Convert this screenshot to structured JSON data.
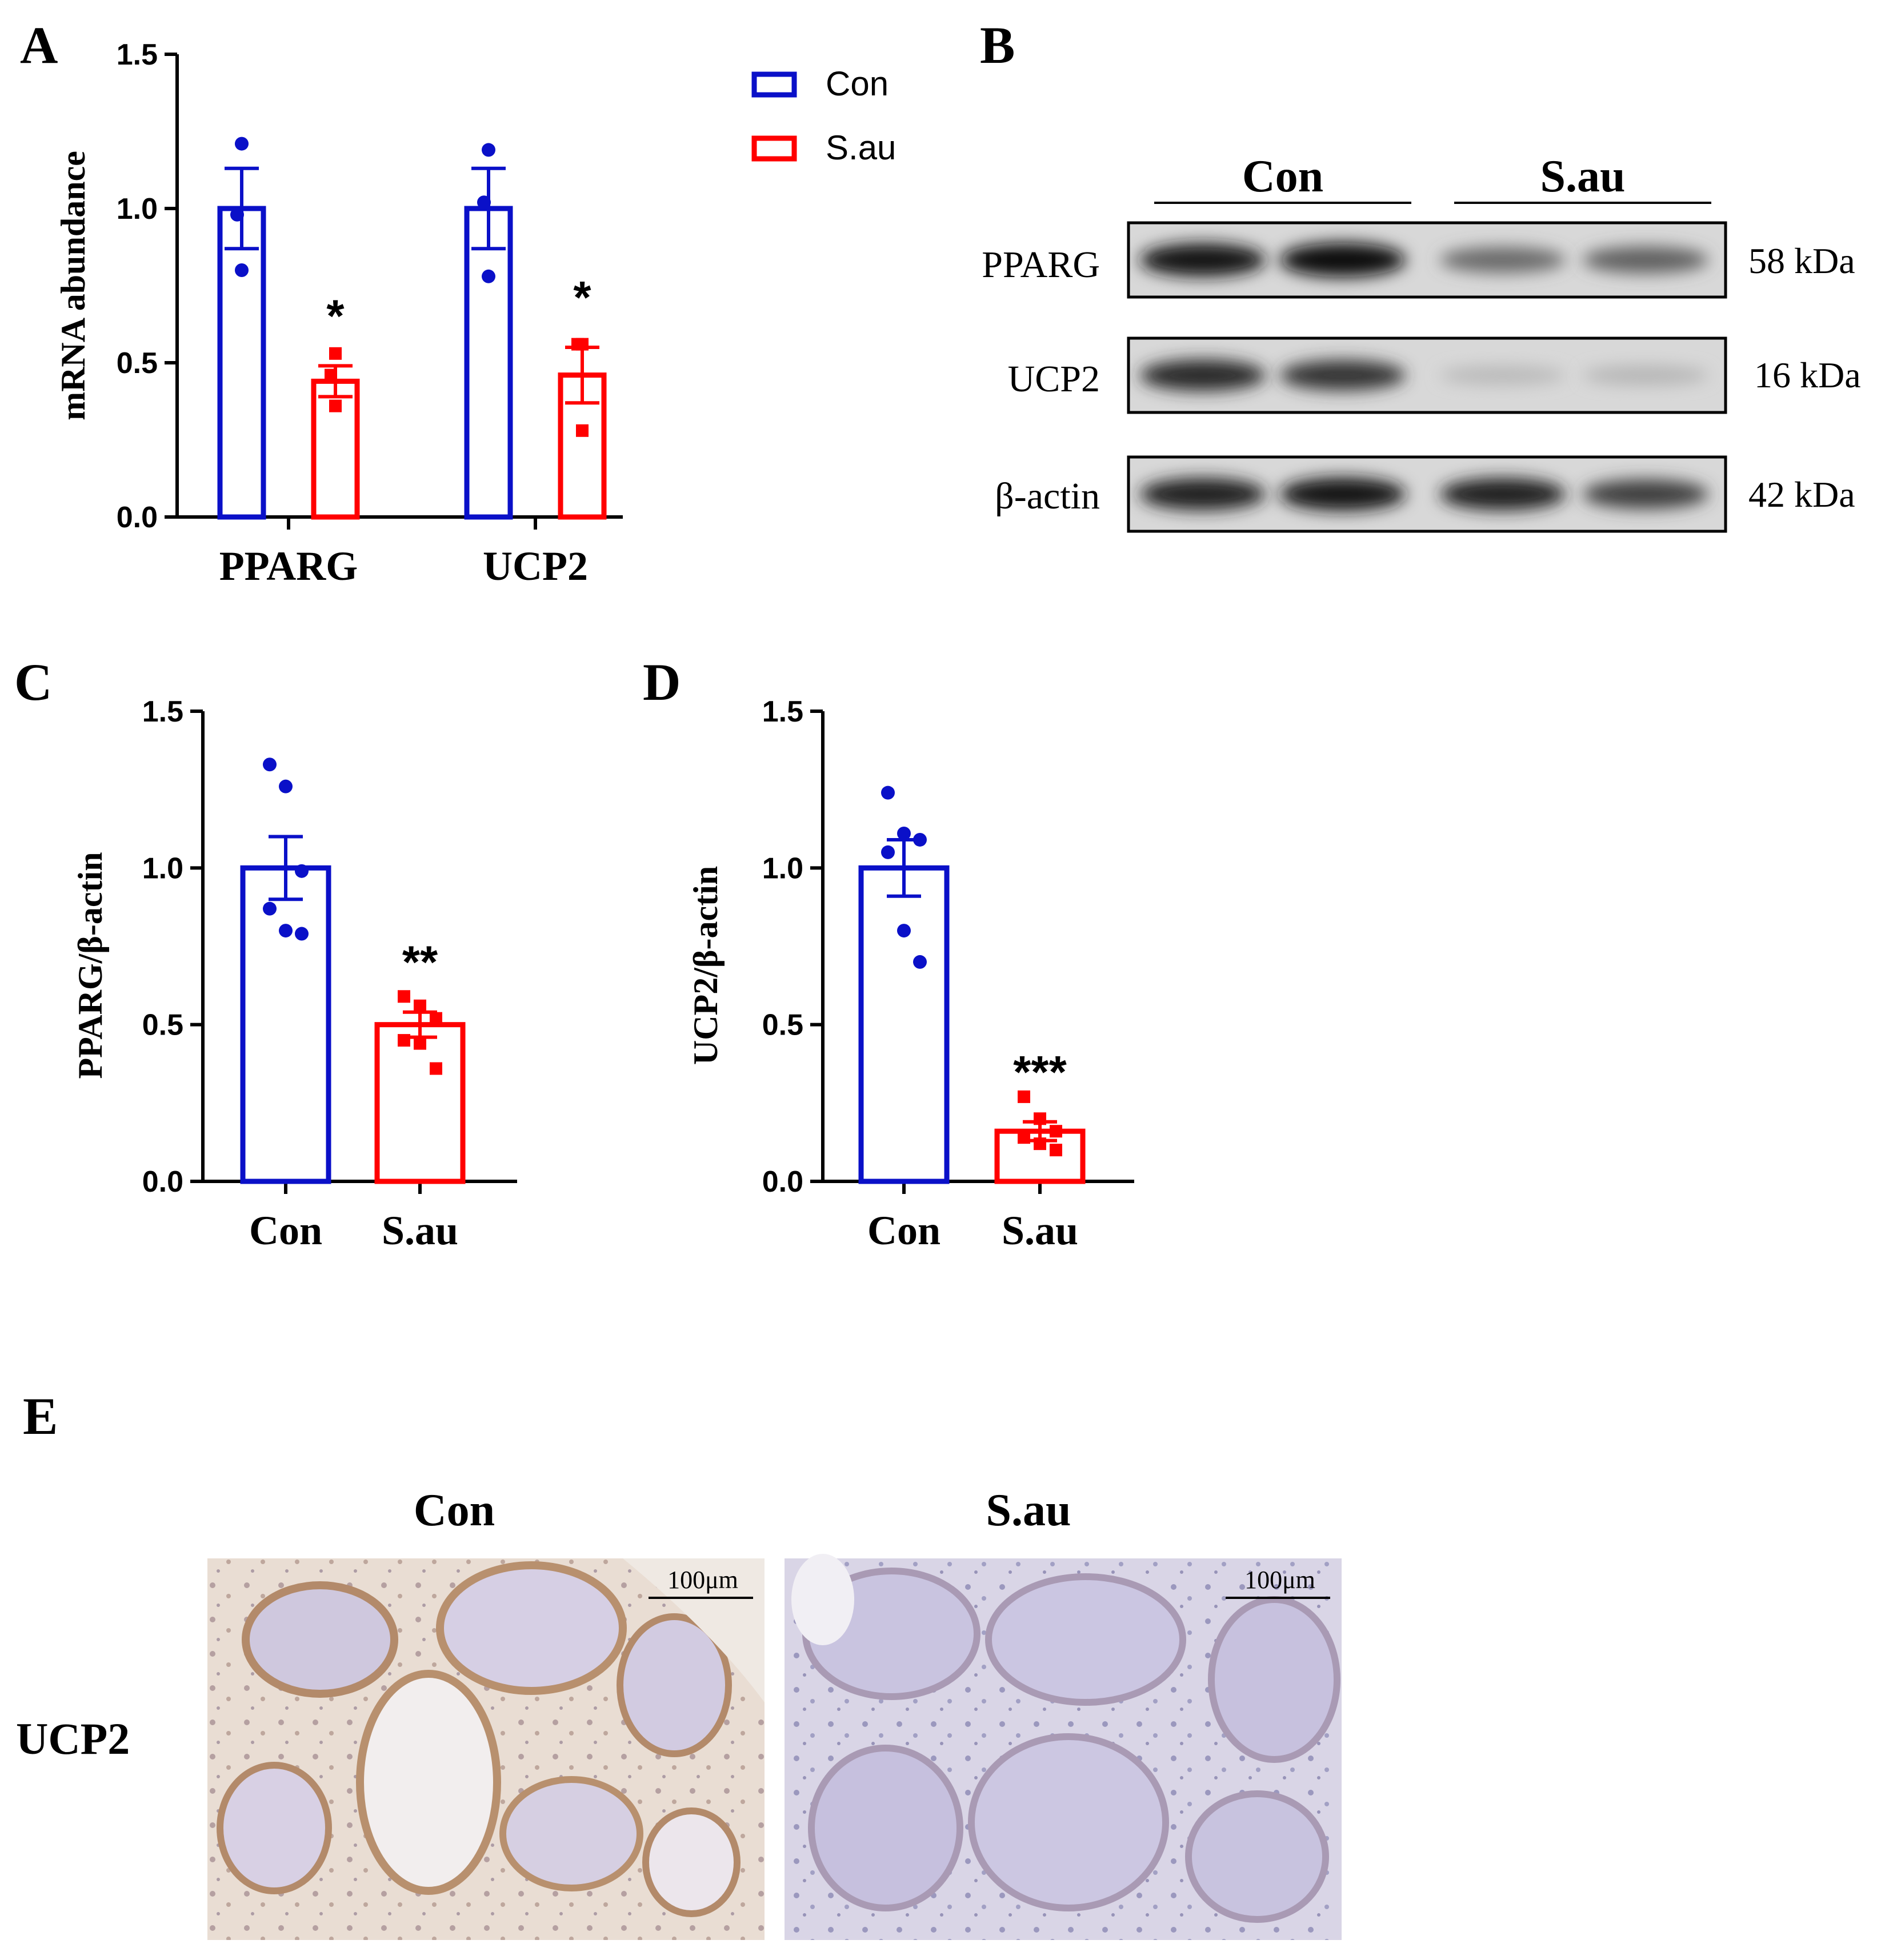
{
  "colors": {
    "con": "#0a10c8",
    "sau": "#ff0000",
    "axis": "#000000"
  },
  "legend": {
    "con": "Con",
    "sau": "S.au"
  },
  "panels": {
    "A": "A",
    "B": "B",
    "C": "C",
    "D": "D",
    "E": "E"
  },
  "chart_data": [
    {
      "panel": "A",
      "type": "bar",
      "ylabel": "mRNA abundance",
      "ylim": [
        0,
        1.5
      ],
      "yticks": [
        "0.0",
        "0.5",
        "1.0",
        "1.5"
      ],
      "categories": [
        "PPARG",
        "UCP2"
      ],
      "series": [
        {
          "name": "Con",
          "values": [
            1.0,
            1.0
          ],
          "sem": [
            0.13,
            0.13
          ],
          "points": [
            [
              1.21,
              0.98,
              0.8
            ],
            [
              1.19,
              1.02,
              0.78
            ]
          ]
        },
        {
          "name": "S.au",
          "values": [
            0.44,
            0.46
          ],
          "sem": [
            0.05,
            0.09
          ],
          "points": [
            [
              0.53,
              0.46,
              0.36
            ],
            [
              0.56,
              0.56,
              0.28
            ]
          ]
        }
      ],
      "significance": [
        "*",
        "*"
      ],
      "legend_position": "top-right"
    },
    {
      "panel": "C",
      "type": "bar",
      "ylabel": "PPARG/β-actin",
      "ylim": [
        0,
        1.5
      ],
      "yticks": [
        "0.0",
        "0.5",
        "1.0",
        "1.5"
      ],
      "categories": [
        "Con",
        "S.au"
      ],
      "values": [
        1.0,
        0.5
      ],
      "sem": [
        0.1,
        0.04
      ],
      "points": [
        [
          1.33,
          1.26,
          0.99,
          0.87,
          0.8,
          0.79
        ],
        [
          0.59,
          0.56,
          0.52,
          0.45,
          0.44,
          0.36
        ]
      ],
      "significance": [
        "",
        "**"
      ]
    },
    {
      "panel": "D",
      "type": "bar",
      "ylabel": "UCP2/β-actin",
      "ylim": [
        0,
        1.5
      ],
      "yticks": [
        "0.0",
        "0.5",
        "1.0",
        "1.5"
      ],
      "categories": [
        "Con",
        "S.au"
      ],
      "values": [
        1.0,
        0.16
      ],
      "sem": [
        0.09,
        0.03
      ],
      "points": [
        [
          1.24,
          1.11,
          1.09,
          1.05,
          0.8,
          0.7
        ],
        [
          0.27,
          0.2,
          0.16,
          0.14,
          0.12,
          0.1
        ]
      ],
      "significance": [
        "",
        "***"
      ]
    }
  ],
  "blot": {
    "groups": [
      "Con",
      "S.au"
    ],
    "rows": [
      {
        "protein": "PPARG",
        "size": "58 kDa",
        "bands": [
          0.95,
          1.0,
          0.55,
          0.6
        ]
      },
      {
        "protein": "UCP2",
        "size": "16 kDa",
        "bands": [
          0.85,
          0.8,
          0.18,
          0.2
        ]
      },
      {
        "protein": "β-actin",
        "size": "42 kDa",
        "bands": [
          0.9,
          0.95,
          0.9,
          0.75
        ]
      }
    ]
  },
  "ihc": {
    "columns": [
      "Con",
      "S.au"
    ],
    "row_label": "UCP2",
    "scale_bar": "100μm"
  }
}
